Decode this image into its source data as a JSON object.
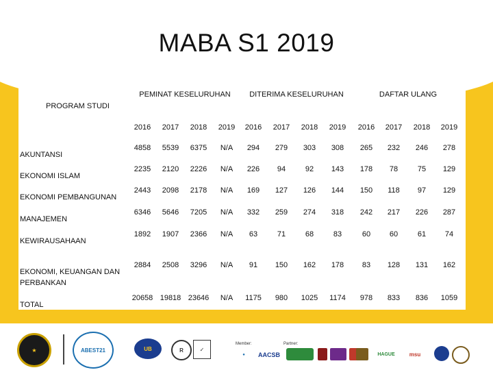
{
  "title": "MABA S1 2019",
  "table": {
    "program_header": "PROGRAM STUDI",
    "groups": [
      "PEMINAT KESELURUHAN",
      "DITERIMA KESELURUHAN",
      "DAFTAR ULANG"
    ],
    "years": [
      "2016",
      "2017",
      "2018",
      "2019"
    ],
    "rows": [
      {
        "name": "AKUNTANSI",
        "values": [
          "4858",
          "5539",
          "6375",
          "N/A",
          "294",
          "279",
          "303",
          "308",
          "265",
          "232",
          "246",
          "278"
        ]
      },
      {
        "name": "EKONOMI ISLAM",
        "values": [
          "2235",
          "2120",
          "2226",
          "N/A",
          "226",
          "94",
          "92",
          "143",
          "178",
          "78",
          "75",
          "129"
        ]
      },
      {
        "name": "EKONOMI PEMBANGUNAN",
        "values": [
          "2443",
          "2098",
          "2178",
          "N/A",
          "169",
          "127",
          "126",
          "144",
          "150",
          "118",
          "97",
          "129"
        ]
      },
      {
        "name": "MANAJEMEN",
        "values": [
          "6346",
          "5646",
          "7205",
          "N/A",
          "332",
          "259",
          "274",
          "318",
          "242",
          "217",
          "226",
          "287"
        ]
      },
      {
        "name": "KEWIRAUSAHAAN",
        "values": [
          "1892",
          "1907",
          "2366",
          "N/A",
          "63",
          "71",
          "68",
          "83",
          "60",
          "60",
          "61",
          "74"
        ]
      },
      {
        "name": "EKONOMI, KEUANGAN DAN PERBANKAN",
        "name_lines": [
          "EKONOMI, KEUANGAN DAN",
          "PERBANKAN"
        ],
        "values": [
          "2884",
          "2508",
          "3296",
          "N/A",
          "91",
          "150",
          "162",
          "178",
          "83",
          "128",
          "131",
          "162"
        ]
      },
      {
        "name": "TOTAL",
        "values": [
          "20658",
          "19818",
          "23646",
          "N/A",
          "1175",
          "980",
          "1025",
          "1174",
          "978",
          "833",
          "836",
          "1059"
        ]
      }
    ]
  },
  "footer": {
    "member_label": "Member:",
    "partner_label": "Partner:",
    "logos": [
      "ABEST21",
      "AACSB",
      "UB",
      "HAGUE",
      "msu"
    ]
  }
}
